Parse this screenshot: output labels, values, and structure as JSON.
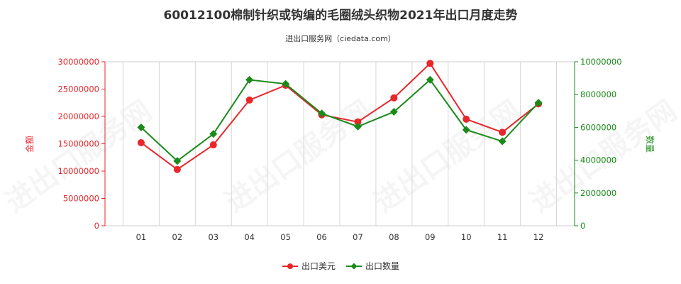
{
  "chart_data": {
    "type": "line",
    "title": "60012100棉制针织或钩编的毛圈绒头织物2021年出口月度走势",
    "subtitle": "进出口服务网（ciedata.com）",
    "categories": [
      "01",
      "02",
      "03",
      "04",
      "05",
      "06",
      "07",
      "08",
      "09",
      "10",
      "11",
      "12"
    ],
    "left_axis": {
      "label": "金额",
      "ylim": [
        0,
        30000000
      ],
      "ticks": [
        0,
        5000000,
        10000000,
        15000000,
        20000000,
        25000000,
        30000000
      ],
      "tick_labels": [
        "0",
        "5000000",
        "10000000",
        "15000000",
        "20000000",
        "25000000",
        "30000000"
      ],
      "color": "#e8262b"
    },
    "right_axis": {
      "label": "数量",
      "ylim": [
        0,
        10000000
      ],
      "ticks": [
        0,
        2000000,
        4000000,
        6000000,
        8000000,
        10000000
      ],
      "tick_labels": [
        "0",
        "2000000",
        "4000000",
        "6000000",
        "8000000",
        "10000000"
      ],
      "color": "#1a8a1a"
    },
    "series": [
      {
        "name": "出口美元",
        "axis": "left",
        "color": "#e8262b",
        "marker": "circle",
        "values": [
          15200000,
          10300000,
          14800000,
          23000000,
          25700000,
          20300000,
          19000000,
          23400000,
          29700000,
          19500000,
          17100000,
          22300000
        ]
      },
      {
        "name": "出口数量",
        "axis": "right",
        "color": "#1a8a1a",
        "marker": "diamond",
        "values": [
          6000000,
          3950000,
          5600000,
          8900000,
          8650000,
          6850000,
          6050000,
          6950000,
          8900000,
          5850000,
          5150000,
          7500000
        ]
      }
    ],
    "grid": {
      "vertical": true,
      "horizontal": false
    },
    "legend": {
      "position": "bottom-center"
    },
    "watermark": "进出口服务网"
  }
}
